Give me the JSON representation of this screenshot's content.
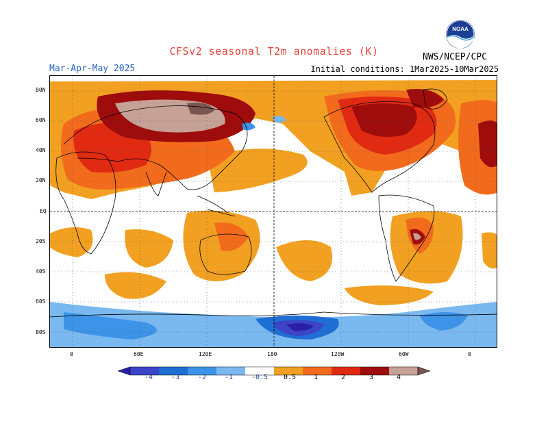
{
  "header": {
    "title": "CFSv2 seasonal T2m anomalies (K)",
    "period": "Mar-Apr-May 2025",
    "initial_conditions": "Initial conditions: 1Mar2025-10Mar2025",
    "agency": "NWS/NCEP/CPC",
    "logo_text": "NOAA"
  },
  "map": {
    "projection": "cylindrical equidistant",
    "lat_labels": [
      "80N",
      "60N",
      "40N",
      "20N",
      "EQ",
      "20S",
      "40S",
      "60S",
      "80S"
    ],
    "lon_labels": [
      "0",
      "60E",
      "120E",
      "180",
      "120W",
      "60W",
      "0"
    ],
    "grid": "dotted"
  },
  "legend": {
    "labels": [
      "-4",
      "-3",
      "-2",
      "-1",
      "-0.5",
      "0.5",
      "1",
      "2",
      "3",
      "4"
    ],
    "colors": [
      "#2b1fa6",
      "#3b45c8",
      "#1f6ed4",
      "#3c93e8",
      "#7ab8f0",
      "#ffffff",
      "#f2a021",
      "#f26b1d",
      "#e02a12",
      "#9e0c0c",
      "#c6a195",
      "#7a5550"
    ]
  }
}
